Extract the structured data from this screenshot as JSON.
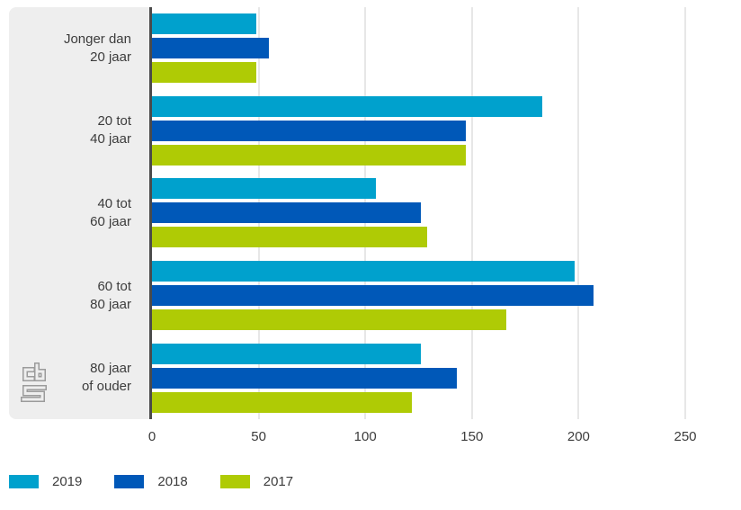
{
  "chart_data": {
    "type": "bar",
    "orientation": "horizontal",
    "categories": [
      {
        "line1": "Jonger dan",
        "line2": "20 jaar"
      },
      {
        "line1": "20 tot",
        "line2": "40 jaar"
      },
      {
        "line1": "40 tot",
        "line2": "60 jaar"
      },
      {
        "line1": "60 tot",
        "line2": "80 jaar"
      },
      {
        "line1": "80 jaar",
        "line2": "of ouder"
      }
    ],
    "series": [
      {
        "name": "2019",
        "color": "#00a1cd",
        "values": [
          49,
          183,
          105,
          198,
          126
        ]
      },
      {
        "name": "2018",
        "color": "#0058b8",
        "values": [
          55,
          147,
          126,
          207,
          143
        ]
      },
      {
        "name": "2017",
        "color": "#afcb05",
        "values": [
          49,
          147,
          129,
          166,
          122
        ]
      }
    ],
    "x_ticks": [
      0,
      50,
      100,
      150,
      200,
      250
    ],
    "xlim": [
      0,
      250
    ],
    "grid": "vertical",
    "legend_position": "bottom-left",
    "title": "",
    "xlabel": "",
    "ylabel": ""
  },
  "branding": {
    "logo": "cbs-logo"
  },
  "colors": {
    "background": "#ffffff",
    "panel_bg": "#eeeeee",
    "axis_line": "#4a4a4a",
    "gridline": "#e7e7e7",
    "text": "#3c3c3c",
    "logo_stroke": "#9b9b9b"
  }
}
